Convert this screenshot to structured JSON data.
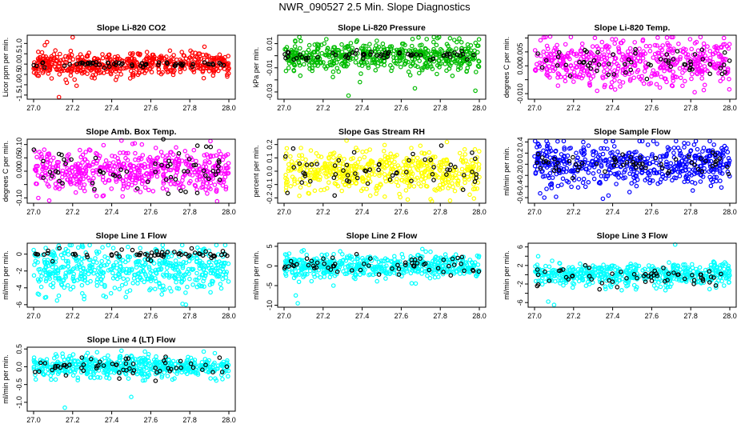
{
  "page_title": "NWR_090527  2.5 Min. Slope Diagnostics",
  "chart_data": [
    {
      "type": "scatter",
      "title": "Slope Li-820 CO2",
      "ylabel": "Licor ppm per min.",
      "color": "#ff0000",
      "xlim": [
        27.0,
        28.0
      ],
      "ylim": [
        -1.7,
        1.4
      ],
      "yticks": [
        -1.5,
        -1.0,
        -0.5,
        0.0,
        0.5,
        1.0
      ],
      "ytick_labels": [
        "-1.5",
        "-1.0",
        "-0.5",
        "0.0",
        "0.5",
        "1.0"
      ],
      "xticks": [
        27.0,
        27.2,
        27.4,
        27.6,
        27.8,
        28.0
      ],
      "xtick_labels": [
        "27.0",
        "27.2",
        "27.4",
        "27.6",
        "27.8",
        "28.0"
      ],
      "center": 0.0,
      "spread": 0.3,
      "black_spread": 0.08,
      "seed": 11,
      "outliers": [
        [
          27.2,
          1.3
        ],
        [
          27.17,
          -0.9
        ],
        [
          27.21,
          -0.75
        ],
        [
          27.13,
          -1.6
        ],
        [
          27.22,
          -1.05
        ],
        [
          27.19,
          -0.55
        ]
      ]
    },
    {
      "type": "scatter",
      "title": "Slope Li-820 Pressure",
      "ylabel": "kPa per min.",
      "color": "#00bb00",
      "xlim": [
        27.0,
        28.0
      ],
      "ylim": [
        -0.036,
        0.017
      ],
      "yticks": [
        -0.03,
        -0.02,
        -0.01,
        0.0,
        0.01
      ],
      "ytick_labels": [
        "-0.03",
        "",
        "-0.01",
        "",
        "0.01"
      ],
      "xticks": [
        27.0,
        27.2,
        27.4,
        27.6,
        27.8,
        28.0
      ],
      "xtick_labels": [
        "27.0",
        "27.2",
        "27.4",
        "27.6",
        "27.8",
        "28.0"
      ],
      "center": 0.0,
      "spread": 0.006,
      "black_spread": 0.002,
      "seed": 23,
      "outliers": [
        [
          27.33,
          -0.033
        ],
        [
          27.98,
          -0.029
        ],
        [
          27.67,
          -0.027
        ]
      ]
    },
    {
      "type": "scatter",
      "title": "Slope Li-820 Temp.",
      "ylabel": "degrees C per min.",
      "color": "#ff00ff",
      "xlim": [
        27.0,
        28.0
      ],
      "ylim": [
        -0.012,
        0.011
      ],
      "yticks": [
        -0.01,
        -0.005,
        0.0,
        0.005,
        0.01
      ],
      "ytick_labels": [
        "-0.010",
        "",
        "0.000",
        "0.005",
        ""
      ],
      "xticks": [
        27.0,
        27.2,
        27.4,
        27.6,
        27.8,
        28.0
      ],
      "xtick_labels": [
        "27.0",
        "27.2",
        "27.4",
        "27.6",
        "27.8",
        "28.0"
      ],
      "center": 0.001,
      "spread": 0.004,
      "black_spread": 0.003,
      "seed": 37,
      "outliers": [
        [
          27.08,
          0.0105
        ],
        [
          27.97,
          0.01
        ],
        [
          27.82,
          -0.0095
        ]
      ]
    },
    {
      "type": "scatter",
      "title": "Slope Amb. Box Temp.",
      "ylabel": "degrees C per min.",
      "color": "#ff00ff",
      "xlim": [
        27.0,
        28.0
      ],
      "ylim": [
        -0.12,
        0.12
      ],
      "yticks": [
        -0.1,
        -0.05,
        0.0,
        0.05,
        0.1
      ],
      "ytick_labels": [
        "-0.10",
        "",
        "0.00",
        "0.05",
        "0.10"
      ],
      "xticks": [
        27.0,
        27.2,
        27.4,
        27.6,
        27.8,
        28.0
      ],
      "xtick_labels": [
        "27.0",
        "27.2",
        "27.4",
        "27.6",
        "27.8",
        "28.0"
      ],
      "center": 0.0,
      "spread": 0.04,
      "black_spread": 0.04,
      "seed": 41,
      "outliers": [
        [
          27.45,
          0.115
        ],
        [
          27.08,
          -0.11
        ]
      ]
    },
    {
      "type": "scatter",
      "title": "Slope Gas Stream RH",
      "ylabel": "percent per min.",
      "color": "#ffff00",
      "xlim": [
        27.0,
        28.0
      ],
      "ylim": [
        -0.24,
        0.24
      ],
      "yticks": [
        -0.2,
        -0.1,
        0.0,
        0.1,
        0.2
      ],
      "ytick_labels": [
        "-0.2",
        "-0.1",
        "0.0",
        "0.1",
        "0.2"
      ],
      "xticks": [
        27.0,
        27.2,
        27.4,
        27.6,
        27.8,
        28.0
      ],
      "xtick_labels": [
        "27.0",
        "27.2",
        "27.4",
        "27.6",
        "27.8",
        "28.0"
      ],
      "center": 0.0,
      "spread": 0.08,
      "black_spread": 0.07,
      "seed": 53,
      "outliers": [
        [
          27.32,
          0.23
        ],
        [
          27.85,
          -0.22
        ]
      ]
    },
    {
      "type": "scatter",
      "title": "Slope Sample Flow",
      "ylabel": "ml/min per min.",
      "color": "#0000ff",
      "xlim": [
        27.0,
        28.0
      ],
      "ylim": [
        -0.7,
        0.45
      ],
      "yticks": [
        -0.6,
        -0.4,
        -0.2,
        0.0,
        0.2,
        0.4
      ],
      "ytick_labels": [
        "-0.6",
        "-0.4",
        "-0.2",
        "0.0",
        "0.2",
        "0.4"
      ],
      "xticks": [
        27.0,
        27.2,
        27.4,
        27.6,
        27.8,
        28.0
      ],
      "xtick_labels": [
        "27.0",
        "27.2",
        "27.4",
        "27.6",
        "27.8",
        "28.0"
      ],
      "center": 0.0,
      "spread": 0.18,
      "black_spread": 0.1,
      "seed": 67,
      "outliers": [
        [
          27.05,
          -0.6
        ],
        [
          27.35,
          -0.62
        ]
      ]
    },
    {
      "type": "scatter",
      "title": "Slope Line 1 Flow",
      "ylabel": "ml/min per min.",
      "color": "#00ffff",
      "xlim": [
        27.0,
        28.0
      ],
      "ylim": [
        -6.3,
        1.3
      ],
      "yticks": [
        -6,
        -4,
        -2,
        0
      ],
      "ytick_labels": [
        "-6",
        "-4",
        "-2",
        "0"
      ],
      "xticks": [
        27.0,
        27.2,
        27.4,
        27.6,
        27.8,
        28.0
      ],
      "xtick_labels": [
        "27.0",
        "27.2",
        "27.4",
        "27.6",
        "27.8",
        "28.0"
      ],
      "center": -1.8,
      "spread": 1.3,
      "black_spread": 0.3,
      "black_center": 0.0,
      "seed": 71,
      "outliers": [
        [
          27.78,
          -6.0
        ],
        [
          27.12,
          -5.5
        ]
      ]
    },
    {
      "type": "scatter",
      "title": "Slope Line 2 Flow",
      "ylabel": "ml/min per min.",
      "color": "#00ffff",
      "xlim": [
        27.0,
        28.0
      ],
      "ylim": [
        -10.5,
        5.8
      ],
      "yticks": [
        -10,
        -5,
        0,
        5
      ],
      "ytick_labels": [
        "-10",
        "-5",
        "0",
        "5"
      ],
      "xticks": [
        27.0,
        27.2,
        27.4,
        27.6,
        27.8,
        28.0
      ],
      "xtick_labels": [
        "27.0",
        "27.2",
        "27.4",
        "27.6",
        "27.8",
        "28.0"
      ],
      "center": 0.0,
      "spread": 1.5,
      "black_spread": 1.2,
      "seed": 83,
      "outliers": [
        [
          27.07,
          -9.5
        ],
        [
          27.06,
          -7.5
        ],
        [
          27.1,
          4.0
        ]
      ]
    },
    {
      "type": "scatter",
      "title": "Slope Line 3 Flow",
      "ylabel": "ml/min per min.",
      "color": "#00ffff",
      "xlim": [
        27.0,
        28.0
      ],
      "ylim": [
        -7.0,
        6.8
      ],
      "yticks": [
        -6,
        -4,
        -2,
        0,
        2,
        4,
        6
      ],
      "ytick_labels": [
        "-6",
        "",
        "-2",
        "",
        "2",
        "",
        "6"
      ],
      "xticks": [
        27.0,
        27.2,
        27.4,
        27.6,
        27.8,
        28.0
      ],
      "xtick_labels": [
        "27.0",
        "27.2",
        "27.4",
        "27.6",
        "27.8",
        "28.0"
      ],
      "center": 0.0,
      "spread": 1.3,
      "black_spread": 1.2,
      "seed": 97,
      "outliers": [
        [
          27.1,
          -6.5
        ],
        [
          27.07,
          -5.8
        ],
        [
          27.72,
          6.5
        ]
      ]
    },
    {
      "type": "scatter",
      "title": "Slope Line 4 (LT) Flow",
      "ylabel": "ml/min per min.",
      "color": "#00ffff",
      "xlim": [
        27.0,
        28.0
      ],
      "ylim": [
        -1.25,
        0.55
      ],
      "yticks": [
        -1.0,
        -0.5,
        0.0,
        0.5
      ],
      "ytick_labels": [
        "-1.0",
        "-0.5",
        "0.0",
        "0.5"
      ],
      "xticks": [
        27.0,
        27.2,
        27.4,
        27.6,
        27.8,
        28.0
      ],
      "xtick_labels": [
        "27.0",
        "27.2",
        "27.4",
        "27.6",
        "27.8",
        "28.0"
      ],
      "center": 0.0,
      "spread": 0.15,
      "black_spread": 0.15,
      "seed": 101,
      "outliers": [
        [
          27.16,
          -1.15
        ],
        [
          27.5,
          -0.85
        ],
        [
          27.45,
          0.45
        ]
      ]
    }
  ]
}
